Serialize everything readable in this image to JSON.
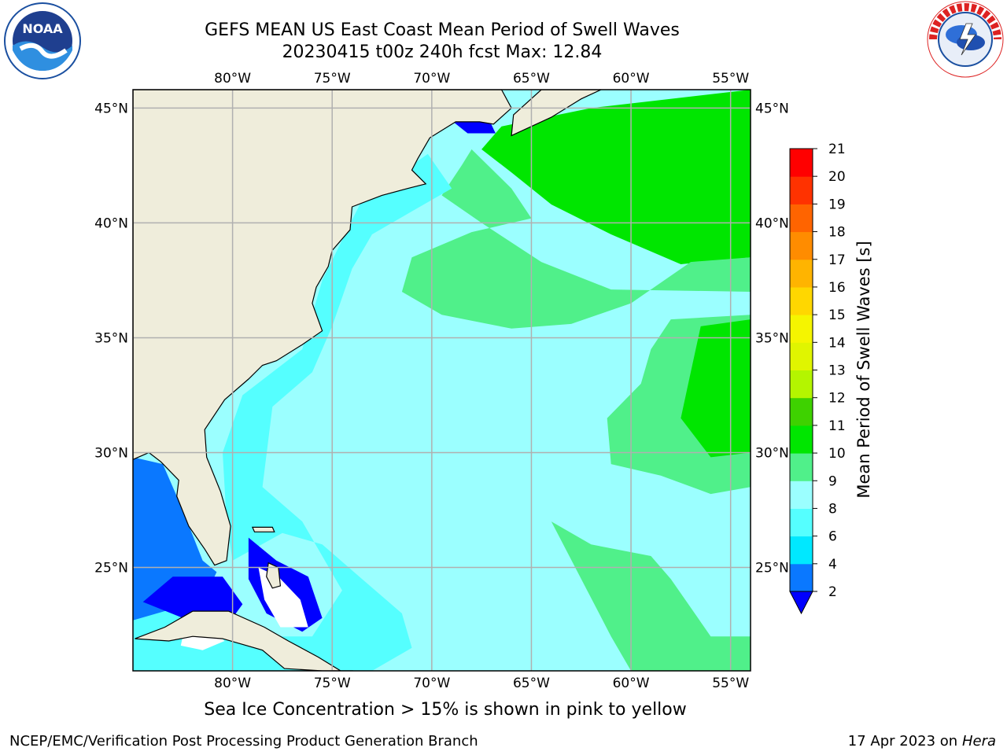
{
  "title": {
    "line1": "GEFS MEAN US East Coast Mean Period of Swell Waves",
    "line2": "20230415 t00z 240h fcst   Max: 12.84"
  },
  "map": {
    "lon_range": [
      -85,
      -54
    ],
    "lat_range": [
      20.5,
      45.8
    ],
    "lon_ticks": [
      {
        "value": -80,
        "label": "80°W"
      },
      {
        "value": -75,
        "label": "75°W"
      },
      {
        "value": -70,
        "label": "70°W"
      },
      {
        "value": -65,
        "label": "65°W"
      },
      {
        "value": -60,
        "label": "60°W"
      },
      {
        "value": -55,
        "label": "55°W"
      }
    ],
    "lat_ticks": [
      {
        "value": 45,
        "label": "45°N"
      },
      {
        "value": 40,
        "label": "40°N"
      },
      {
        "value": 35,
        "label": "35°N"
      },
      {
        "value": 30,
        "label": "30°N"
      },
      {
        "value": 25,
        "label": "25°N"
      }
    ],
    "grid": true,
    "colors": {
      "land": "#efeddb",
      "ocean_base": "#9bffff",
      "gridline": "#b0b0b0"
    }
  },
  "colorbar": {
    "label": "Mean Period of Swell Waves [s]",
    "ticks": [
      2,
      4,
      6,
      8,
      9,
      10,
      11,
      12,
      13,
      14,
      15,
      16,
      17,
      18,
      19,
      20,
      21
    ],
    "bins": [
      {
        "from": 2,
        "to": 4,
        "color": "#0a78ff"
      },
      {
        "from": 4,
        "to": 6,
        "color": "#00e8ff"
      },
      {
        "from": 6,
        "to": 8,
        "color": "#55ffff"
      },
      {
        "from": 8,
        "to": 9,
        "color": "#9bffff"
      },
      {
        "from": 9,
        "to": 10,
        "color": "#50f08a"
      },
      {
        "from": 10,
        "to": 11,
        "color": "#00e600"
      },
      {
        "from": 11,
        "to": 12,
        "color": "#3ed200"
      },
      {
        "from": 12,
        "to": 13,
        "color": "#b4f500"
      },
      {
        "from": 13,
        "to": 14,
        "color": "#e0f500"
      },
      {
        "from": 14,
        "to": 15,
        "color": "#f5f500"
      },
      {
        "from": 15,
        "to": 16,
        "color": "#ffd700"
      },
      {
        "from": 16,
        "to": 17,
        "color": "#ffb400"
      },
      {
        "from": 17,
        "to": 18,
        "color": "#ff8c00"
      },
      {
        "from": 18,
        "to": 19,
        "color": "#ff6400"
      },
      {
        "from": 19,
        "to": 20,
        "color": "#ff3200"
      },
      {
        "from": 20,
        "to": 21,
        "color": "#ff0000"
      }
    ],
    "under_color": "#0000ff"
  },
  "regions": [
    {
      "name": "region-gulf-of-maine-green",
      "color": "#00e600",
      "poly": [
        [
          -66.5,
          44.2
        ],
        [
          -62,
          45
        ],
        [
          -54,
          45.8
        ],
        [
          -54,
          38.5
        ],
        [
          -57.5,
          38.2
        ],
        [
          -61,
          39.5
        ],
        [
          -64,
          40.8
        ],
        [
          -66,
          42.2
        ],
        [
          -67.5,
          43.2
        ]
      ]
    },
    {
      "name": "region-light-green-north",
      "color": "#50f08a",
      "poly": [
        [
          -68,
          43.2
        ],
        [
          -66,
          41.5
        ],
        [
          -65,
          40.2
        ],
        [
          -68,
          39.6
        ],
        [
          -71,
          38.5
        ],
        [
          -71.5,
          37
        ],
        [
          -69.5,
          36
        ],
        [
          -66,
          35.4
        ],
        [
          -63,
          35.6
        ],
        [
          -60,
          36.5
        ],
        [
          -57,
          38.3
        ],
        [
          -54,
          38.5
        ],
        [
          -54,
          37
        ],
        [
          -61,
          37.1
        ],
        [
          -64.5,
          38.3
        ],
        [
          -67.5,
          40
        ],
        [
          -69.5,
          41.2
        ],
        [
          -68.5,
          42.5
        ]
      ]
    },
    {
      "name": "region-light-green-east",
      "color": "#50f08a",
      "poly": [
        [
          -58,
          35.8
        ],
        [
          -54,
          36
        ],
        [
          -54,
          28.5
        ],
        [
          -56,
          28.2
        ],
        [
          -58.5,
          29
        ],
        [
          -61,
          29.5
        ],
        [
          -61.2,
          31.5
        ],
        [
          -59.5,
          33
        ],
        [
          -59,
          34.5
        ]
      ]
    },
    {
      "name": "region-green-east",
      "color": "#00e600",
      "poly": [
        [
          -56.5,
          35.5
        ],
        [
          -54,
          35.8
        ],
        [
          -54,
          30
        ],
        [
          -56,
          29.8
        ],
        [
          -57.5,
          31.5
        ],
        [
          -57,
          33.5
        ]
      ]
    },
    {
      "name": "region-light-green-southeast",
      "color": "#50f08a",
      "poly": [
        [
          -64,
          27
        ],
        [
          -62,
          26
        ],
        [
          -59,
          25.5
        ],
        [
          -58,
          24.5
        ],
        [
          -56,
          22
        ],
        [
          -54,
          22
        ],
        [
          -54,
          20.5
        ],
        [
          -60,
          20.5
        ],
        [
          -61,
          22
        ],
        [
          -62.5,
          24.5
        ]
      ]
    },
    {
      "name": "region-cyan-nearshore",
      "color": "#55ffff",
      "poly": [
        [
          -70.2,
          43
        ],
        [
          -73.5,
          41
        ],
        [
          -75.5,
          37.5
        ],
        [
          -76.5,
          34.5
        ],
        [
          -79.5,
          32.5
        ],
        [
          -80.5,
          30
        ],
        [
          -80.3,
          27
        ],
        [
          -80,
          25.3
        ],
        [
          -77.5,
          26.5
        ],
        [
          -75.5,
          26
        ],
        [
          -73.5,
          24.5
        ],
        [
          -71.5,
          23
        ],
        [
          -71,
          21.5
        ],
        [
          -73,
          20.5
        ],
        [
          -85,
          20.5
        ],
        [
          -85,
          24.5
        ],
        [
          -81,
          24.5
        ],
        [
          -80.5,
          22
        ],
        [
          -76,
          22
        ],
        [
          -74.5,
          24
        ],
        [
          -76.5,
          27
        ],
        [
          -78.5,
          28.5
        ],
        [
          -78,
          32
        ],
        [
          -76,
          33.5
        ],
        [
          -75,
          35.5
        ],
        [
          -74,
          38
        ],
        [
          -73,
          39.5
        ],
        [
          -71,
          40.5
        ],
        [
          -69,
          41.5
        ]
      ]
    },
    {
      "name": "region-gulf-blue",
      "color": "#0a78ff",
      "poly": [
        [
          -85,
          29.8
        ],
        [
          -83.5,
          29.5
        ],
        [
          -82.5,
          27.5
        ],
        [
          -81.5,
          25.3
        ],
        [
          -80.8,
          24.8
        ],
        [
          -81.5,
          23.5
        ],
        [
          -83,
          23.2
        ],
        [
          -85,
          22.7
        ]
      ]
    },
    {
      "name": "region-florida-strait-deep",
      "color": "#0000ff",
      "poly": [
        [
          -83,
          24.6
        ],
        [
          -80.5,
          24.6
        ],
        [
          -79.5,
          23.4
        ],
        [
          -80,
          22.8
        ],
        [
          -82.5,
          22.8
        ],
        [
          -84.5,
          23.5
        ]
      ]
    },
    {
      "name": "region-bahamas-deep",
      "color": "#0000ff",
      "poly": [
        [
          -79.2,
          26.3
        ],
        [
          -77.8,
          25.3
        ],
        [
          -76.2,
          24.6
        ],
        [
          -75.5,
          22.8
        ],
        [
          -76.5,
          22.2
        ],
        [
          -78.3,
          23
        ],
        [
          -79.2,
          24.5
        ]
      ]
    },
    {
      "name": "region-bahamas-white",
      "color": "#ffffff",
      "poly": [
        [
          -78.7,
          25
        ],
        [
          -77.7,
          24.6
        ],
        [
          -76.6,
          23.6
        ],
        [
          -76.2,
          22.4
        ],
        [
          -77.6,
          22.4
        ],
        [
          -78.4,
          23.6
        ]
      ]
    },
    {
      "name": "region-cuba-white",
      "color": "#ffffff",
      "poly": [
        [
          -82.5,
          22
        ],
        [
          -81.2,
          22.4
        ],
        [
          -80.4,
          21.8
        ],
        [
          -81.5,
          21.4
        ],
        [
          -82.6,
          21.6
        ]
      ]
    },
    {
      "name": "region-gulf-of-maine-blue",
      "color": "#0000ff",
      "poly": [
        [
          -69.5,
          44.8
        ],
        [
          -67.4,
          45
        ],
        [
          -66.8,
          43.9
        ],
        [
          -68.2,
          43.9
        ]
      ]
    }
  ],
  "land": [
    {
      "name": "land-north-america",
      "poly": [
        [
          -85,
          45.8
        ],
        [
          -66.5,
          45.8
        ],
        [
          -66,
          45
        ],
        [
          -66.9,
          44.3
        ],
        [
          -67.6,
          44.4
        ],
        [
          -68.8,
          44.4
        ],
        [
          -70.1,
          43.7
        ],
        [
          -70.7,
          42.8
        ],
        [
          -71,
          42.3
        ],
        [
          -70.3,
          41.7
        ],
        [
          -71.2,
          41.5
        ],
        [
          -72.5,
          41.2
        ],
        [
          -74,
          40.7
        ],
        [
          -74.1,
          39.7
        ],
        [
          -75,
          38.8
        ],
        [
          -75.2,
          38.1
        ],
        [
          -75.8,
          37.2
        ],
        [
          -76,
          36.5
        ],
        [
          -75.5,
          35.3
        ],
        [
          -76.5,
          34.7
        ],
        [
          -77.8,
          34
        ],
        [
          -78.5,
          33.8
        ],
        [
          -79.2,
          33.2
        ],
        [
          -80.4,
          32.3
        ],
        [
          -81.4,
          31
        ],
        [
          -81.3,
          29.8
        ],
        [
          -80.6,
          28.3
        ],
        [
          -80.1,
          26.8
        ],
        [
          -80.3,
          25.3
        ],
        [
          -80.9,
          25.1
        ],
        [
          -81.4,
          25.8
        ],
        [
          -82.2,
          26.8
        ],
        [
          -82.8,
          28.1
        ],
        [
          -82.7,
          28.8
        ],
        [
          -83.6,
          29.6
        ],
        [
          -84.2,
          30
        ],
        [
          -85,
          29.7
        ]
      ]
    },
    {
      "name": "land-nova-scotia",
      "poly": [
        [
          -66,
          43.8
        ],
        [
          -64,
          44.6
        ],
        [
          -62.5,
          45.4
        ],
        [
          -61.5,
          45.8
        ],
        [
          -64.5,
          45.8
        ],
        [
          -65.9,
          44.7
        ]
      ]
    },
    {
      "name": "land-cuba",
      "poly": [
        [
          -84.9,
          21.9
        ],
        [
          -83.4,
          22.4
        ],
        [
          -82,
          23.1
        ],
        [
          -80.2,
          23.1
        ],
        [
          -78.4,
          22.4
        ],
        [
          -77.2,
          21.8
        ],
        [
          -75.7,
          21.1
        ],
        [
          -74.2,
          20.3
        ],
        [
          -74,
          20.5
        ],
        [
          -75.5,
          20.5
        ],
        [
          -77.4,
          20.6
        ],
        [
          -78.5,
          21.4
        ],
        [
          -80.5,
          21.9
        ],
        [
          -82,
          22
        ],
        [
          -83.2,
          21.8
        ]
      ]
    },
    {
      "name": "land-andros-island",
      "poly": [
        [
          -78.2,
          25.2
        ],
        [
          -77.7,
          25
        ],
        [
          -77.6,
          24.2
        ],
        [
          -78,
          24.1
        ],
        [
          -78.3,
          24.6
        ]
      ]
    },
    {
      "name": "land-grand-bahama",
      "poly": [
        [
          -79,
          26.75
        ],
        [
          -78,
          26.75
        ],
        [
          -77.9,
          26.55
        ],
        [
          -78.9,
          26.55
        ]
      ]
    }
  ]
}
